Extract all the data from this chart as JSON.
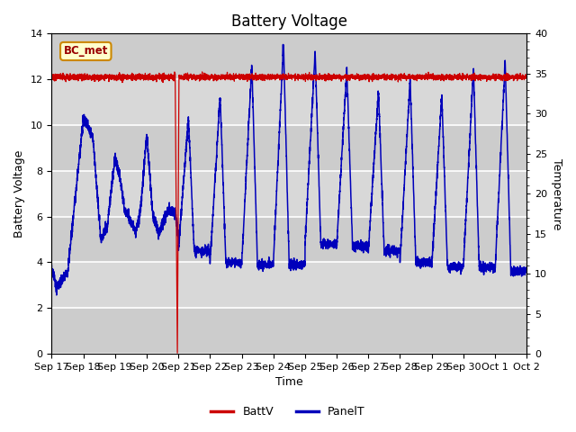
{
  "title": "Battery Voltage",
  "xlabel": "Time",
  "ylabel_left": "Battery Voltage",
  "ylabel_right": "Temperature",
  "ylim_left": [
    0,
    14
  ],
  "ylim_right": [
    0,
    40
  ],
  "yticks_left": [
    0,
    2,
    4,
    6,
    8,
    10,
    12,
    14
  ],
  "yticks_right": [
    0,
    5,
    10,
    15,
    20,
    25,
    30,
    35,
    40
  ],
  "x_tick_labels": [
    "Sep 17",
    "Sep 18",
    "Sep 19",
    "Sep 20",
    "Sep 21",
    "Sep 22",
    "Sep 23",
    "Sep 24",
    "Sep 25",
    "Sep 26",
    "Sep 27",
    "Sep 28",
    "Sep 29",
    "Sep 30",
    "Oct 1",
    "Oct 2"
  ],
  "annotation_text": "BC_met",
  "batt_color": "#cc0000",
  "panel_color": "#0000bb",
  "legend_entries": [
    "BattV",
    "PanelT"
  ],
  "bg_color": "#d8d8d8",
  "grid_color": "#ffffff",
  "title_fontsize": 12,
  "axis_label_fontsize": 9,
  "tick_fontsize": 8,
  "anno_facecolor": "#ffffcc",
  "anno_edgecolor": "#cc8800",
  "anno_textcolor": "#990000"
}
